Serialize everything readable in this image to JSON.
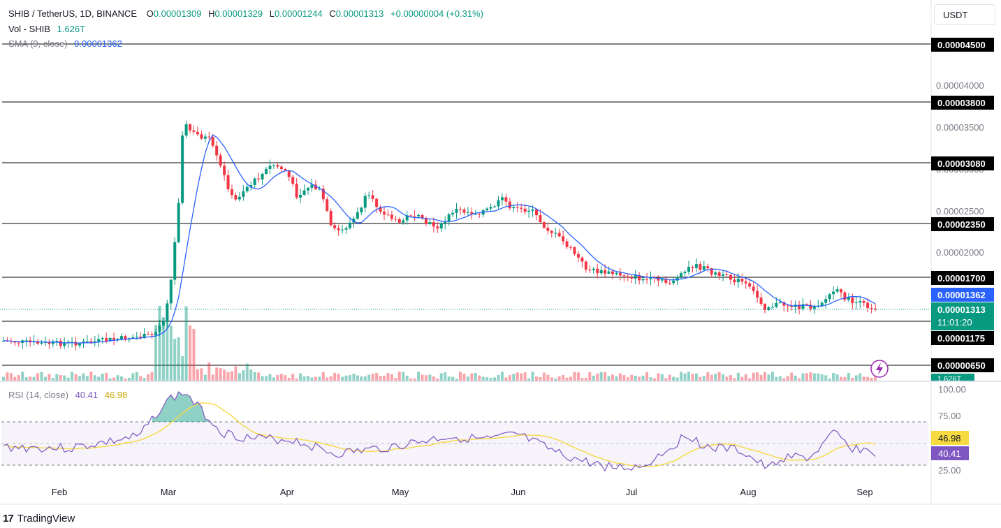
{
  "header": {
    "symbol": "SHIB / TetherUS, 1D, BINANCE",
    "o_label": "O",
    "o_value": "0.00001309",
    "h_label": "H",
    "h_value": "0.00001329",
    "l_label": "L",
    "l_value": "0.00001244",
    "c_label": "C",
    "c_value": "0.00001313",
    "change": "+0.00000004 (+0.31%)",
    "vol_label": "Vol - SHIB",
    "vol_value": "1.626T",
    "sma_label": "SMA (9, close)",
    "sma_value": "0.00001362"
  },
  "currency_button": "USDT",
  "price_axis": {
    "ticks": [
      "0.00004000",
      "0.00003500",
      "0.00003000",
      "0.00002500",
      "0.00002000"
    ],
    "level_labels": [
      "0.00004500",
      "0.00003800",
      "0.00003080",
      "0.00002350",
      "0.00001700",
      "0.00001175",
      "0.00000650"
    ],
    "sma_label": "0.00001362",
    "last_price_label": "0.00001313",
    "countdown": "11:01:20",
    "volume_badge": "1.626T"
  },
  "rsi": {
    "label": "RSI (14, close)",
    "value": "40.41",
    "ma_value": "46.98",
    "ticks": [
      "100.00",
      "75.00",
      "25.00"
    ]
  },
  "time_axis": [
    "Feb",
    "Mar",
    "Apr",
    "May",
    "Jun",
    "Jul",
    "Aug",
    "Sep"
  ],
  "footer": {
    "brand": "TradingView"
  },
  "colors": {
    "up": "#089981",
    "down": "#f23645",
    "sma": "#2962ff",
    "rsi": "#7e57c2",
    "rsi_ma": "#f7d940",
    "level": "#000000",
    "grid": "#f0f3fa"
  }
}
